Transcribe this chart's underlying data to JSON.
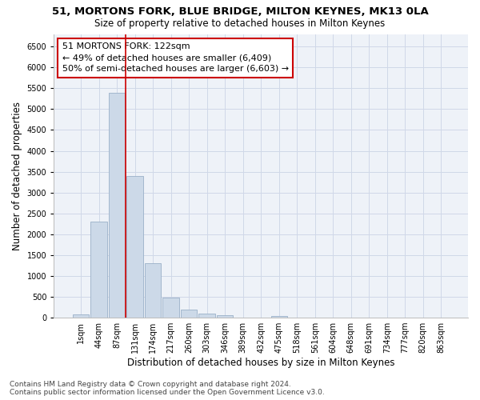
{
  "title": "51, MORTONS FORK, BLUE BRIDGE, MILTON KEYNES, MK13 0LA",
  "subtitle": "Size of property relative to detached houses in Milton Keynes",
  "xlabel": "Distribution of detached houses by size in Milton Keynes",
  "ylabel": "Number of detached properties",
  "footer_line1": "Contains HM Land Registry data © Crown copyright and database right 2024.",
  "footer_line2": "Contains public sector information licensed under the Open Government Licence v3.0.",
  "annotation_line1": "51 MORTONS FORK: 122sqm",
  "annotation_line2": "← 49% of detached houses are smaller (6,409)",
  "annotation_line3": "50% of semi-detached houses are larger (6,603) →",
  "bar_color": "#ccd9e8",
  "bar_edge_color": "#9ab0c8",
  "vline_color": "#cc0000",
  "grid_color": "#d0d8e8",
  "bg_color": "#eef2f8",
  "categories": [
    "1sqm",
    "44sqm",
    "87sqm",
    "131sqm",
    "174sqm",
    "217sqm",
    "260sqm",
    "303sqm",
    "346sqm",
    "389sqm",
    "432sqm",
    "475sqm",
    "518sqm",
    "561sqm",
    "604sqm",
    "648sqm",
    "691sqm",
    "734sqm",
    "777sqm",
    "820sqm",
    "863sqm"
  ],
  "values": [
    80,
    2300,
    5400,
    3400,
    1310,
    490,
    200,
    105,
    60,
    10,
    5,
    35,
    0,
    0,
    0,
    0,
    0,
    0,
    0,
    0,
    0
  ],
  "vline_x_idx": 3,
  "ylim": [
    0,
    6800
  ],
  "yticks": [
    0,
    500,
    1000,
    1500,
    2000,
    2500,
    3000,
    3500,
    4000,
    4500,
    5000,
    5500,
    6000,
    6500
  ],
  "title_fontsize": 9.5,
  "subtitle_fontsize": 8.5,
  "axis_label_fontsize": 8.5,
  "tick_fontsize": 7,
  "annotation_fontsize": 8,
  "footer_fontsize": 6.5
}
